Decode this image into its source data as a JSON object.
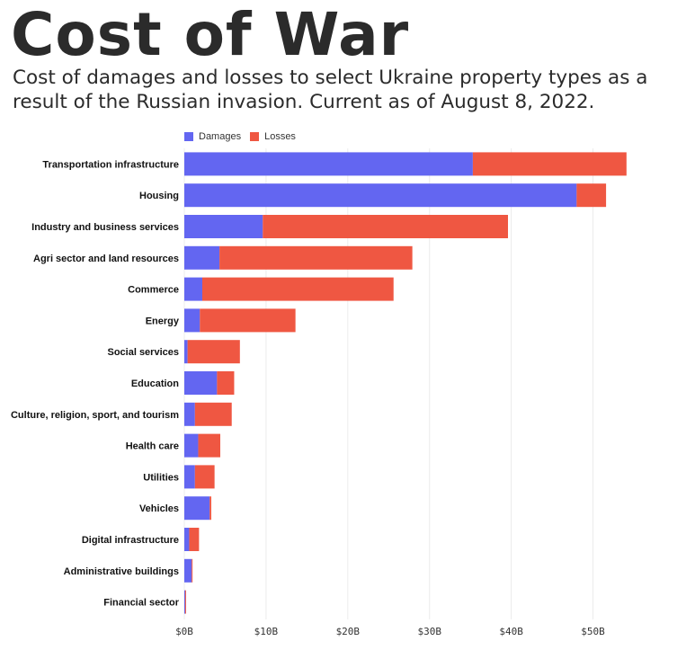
{
  "header": {
    "title": "Cost of War",
    "subtitle": "Cost of damages and losses to select Ukraine property types as a result of the Russian invasion. Current as of August 8, 2022."
  },
  "colors": {
    "damages": "#6366f1",
    "losses": "#ef5742"
  },
  "chart_data": {
    "type": "bar",
    "orientation": "horizontal",
    "stacked": true,
    "categories": [
      "Transportation infrastructure",
      "Housing",
      "Industry and business services",
      "Agri sector and land resources",
      "Commerce",
      "Energy",
      "Social services",
      "Education",
      "Culture, religion, sport, and tourism",
      "Health care",
      "Utilities",
      "Vehicles",
      "Digital infrastructure",
      "Administrative buildings",
      "Financial sector"
    ],
    "series": [
      {
        "name": "Damages",
        "values": [
          35.3,
          48.0,
          9.6,
          4.3,
          2.2,
          1.9,
          0.4,
          4.0,
          1.3,
          1.7,
          1.3,
          3.1,
          0.6,
          0.9,
          0.1
        ]
      },
      {
        "name": "Losses",
        "values": [
          18.8,
          3.6,
          30.0,
          23.6,
          23.4,
          11.7,
          6.4,
          2.1,
          4.5,
          2.7,
          2.4,
          0.2,
          1.2,
          0.1,
          0.1
        ]
      }
    ],
    "xlim": [
      0,
      55
    ],
    "xticks": [
      0,
      10,
      20,
      30,
      40,
      50
    ],
    "xtick_labels": [
      "$0B",
      "$10B",
      "$20B",
      "$30B",
      "$40B",
      "$50B"
    ],
    "legend": {
      "placement": "top",
      "entries": [
        "Damages",
        "Losses"
      ]
    },
    "grid": "vertical"
  }
}
